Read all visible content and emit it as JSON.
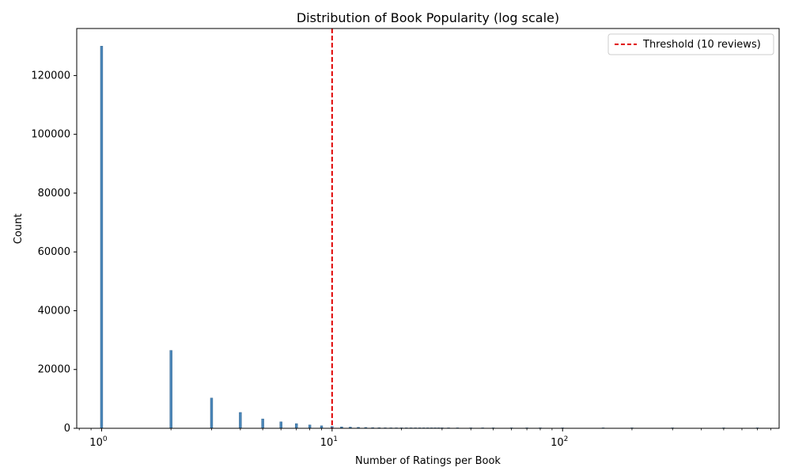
{
  "chart_data": {
    "type": "bar",
    "title": "Distribution of Book Popularity (log scale)",
    "xlabel": "Number of Ratings per Book",
    "ylabel": "Count",
    "x_scale": "log",
    "xlim": [
      0.78,
      870
    ],
    "ylim": [
      0,
      136000
    ],
    "y_ticks": [
      0,
      20000,
      40000,
      60000,
      80000,
      100000,
      120000
    ],
    "x_ticks": [
      {
        "value": 1,
        "base": "10",
        "exp": "0"
      },
      {
        "value": 10,
        "base": "10",
        "exp": "1"
      },
      {
        "value": 100,
        "base": "10",
        "exp": "2"
      }
    ],
    "bar_color": "#4a86b8",
    "grid": false,
    "series": [
      {
        "x": [
          1,
          2,
          3,
          4,
          5,
          6,
          7,
          8,
          9,
          10,
          11,
          12,
          13,
          14,
          15,
          16,
          17,
          18,
          19,
          20,
          21,
          22,
          23,
          24,
          25,
          26,
          27,
          28,
          29,
          30,
          32,
          35,
          40,
          45,
          50,
          60,
          70,
          80,
          100,
          150,
          200,
          300,
          500,
          700
        ],
        "values": [
          130000,
          26500,
          10300,
          5400,
          3200,
          2200,
          1600,
          1150,
          850,
          650,
          500,
          420,
          350,
          290,
          240,
          200,
          170,
          150,
          130,
          110,
          95,
          85,
          75,
          65,
          58,
          50,
          45,
          40,
          35,
          30,
          25,
          20,
          15,
          11,
          8,
          5,
          4,
          3,
          2,
          1,
          1,
          1,
          1,
          1
        ]
      }
    ],
    "threshold": {
      "x": 10,
      "color": "#e00000",
      "label": "Threshold (10 reviews)"
    },
    "legend": {
      "placement": "top-right",
      "entries": [
        "Threshold (10 reviews)"
      ]
    }
  }
}
